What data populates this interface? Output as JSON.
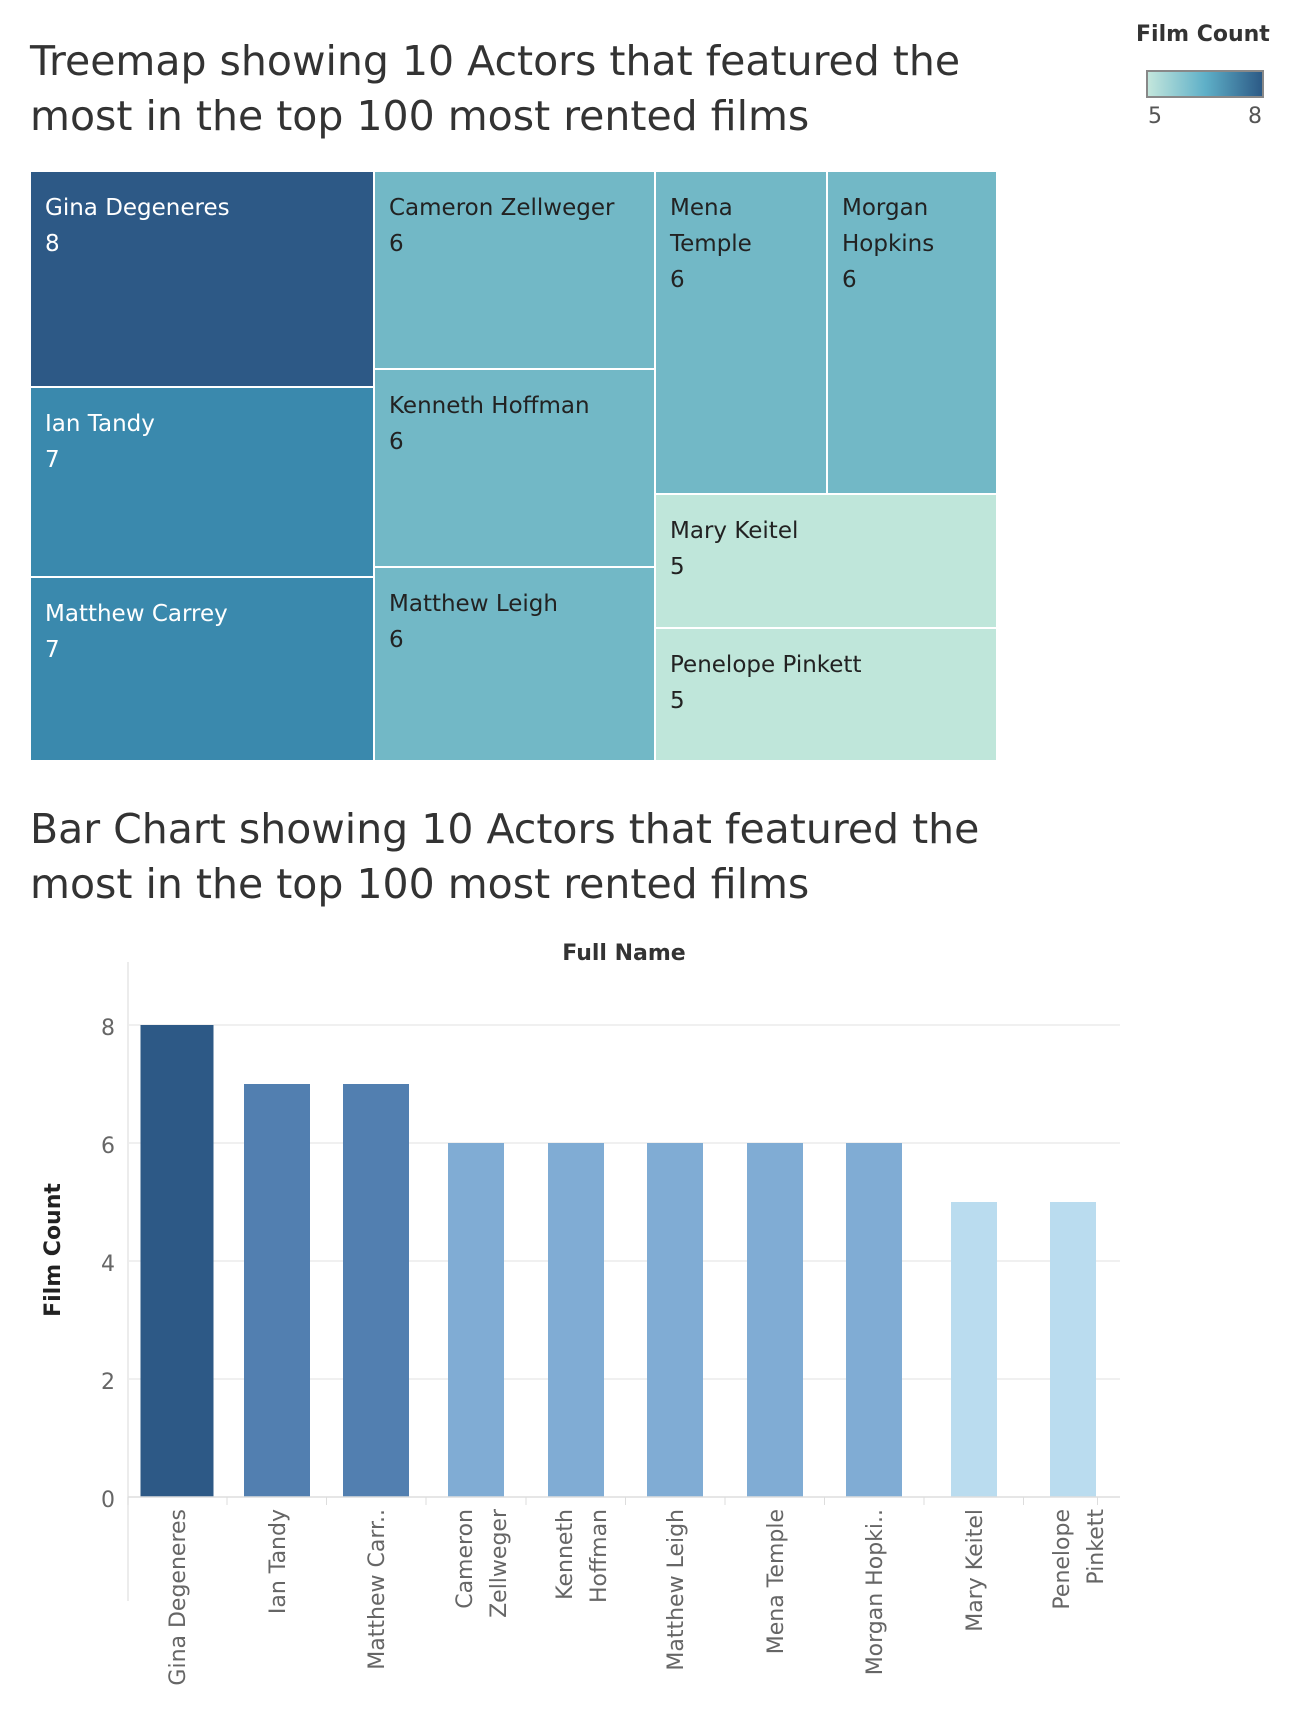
{
  "treemap": {
    "title": "Treemap showing 10 Actors that featured the most in the top 100 most rented films"
  },
  "legend": {
    "title": "Film Count",
    "min": "5",
    "max": "8"
  },
  "barchart": {
    "title": "Bar Chart showing 10 Actors that featured the most in the top 100 most rented films",
    "header": "Full Name",
    "ylabel": "Film Count",
    "tick_labels": [
      "Gina Degeneres",
      "Ian Tandy",
      "Matthew Carr..",
      "Cameron Zellweger",
      "Kenneth Hoffman",
      "Matthew Leigh",
      "Mena Temple",
      "Morgan Hopki..",
      "Mary Keitel",
      "Penelope Pinkett"
    ]
  },
  "chart_data": [
    {
      "type": "treemap",
      "title": "Treemap showing 10 Actors that featured the most in the top 100 most rented films",
      "legend_title": "Film Count",
      "color_range": [
        5,
        8
      ],
      "colors": {
        "8": "#2d5986",
        "7": "#3a89ad",
        "6": "#72b8c6",
        "5": "#bfe6da"
      },
      "items": [
        {
          "name": "Gina Degeneres",
          "value": 8
        },
        {
          "name": "Ian Tandy",
          "value": 7
        },
        {
          "name": "Matthew Carrey",
          "value": 7
        },
        {
          "name": "Cameron Zellweger",
          "value": 6
        },
        {
          "name": "Kenneth Hoffman",
          "value": 6
        },
        {
          "name": "Matthew Leigh",
          "value": 6
        },
        {
          "name": "Mena Temple",
          "value": 6
        },
        {
          "name": "Morgan Hopkins",
          "value": 6
        },
        {
          "name": "Mary Keitel",
          "value": 5
        },
        {
          "name": "Penelope Pinkett",
          "value": 5
        }
      ]
    },
    {
      "type": "bar",
      "title": "Bar Chart showing 10 Actors that featured the most in the top 100 most rented films",
      "xlabel": "Full Name",
      "ylabel": "Film Count",
      "ylim": [
        0,
        9
      ],
      "yticks": [
        0,
        2,
        4,
        6,
        8
      ],
      "grid": true,
      "categories": [
        "Gina Degeneres",
        "Ian Tandy",
        "Matthew Carrey",
        "Cameron Zellweger",
        "Kenneth Hoffman",
        "Matthew Leigh",
        "Mena Temple",
        "Morgan Hopkins",
        "Mary Keitel",
        "Penelope Pinkett"
      ],
      "values": [
        8,
        7,
        7,
        6,
        6,
        6,
        6,
        6,
        5,
        5
      ],
      "colors": {
        "8": "#2d5986",
        "7": "#527fb0",
        "6": "#80acd4",
        "5": "#badcef"
      }
    }
  ]
}
